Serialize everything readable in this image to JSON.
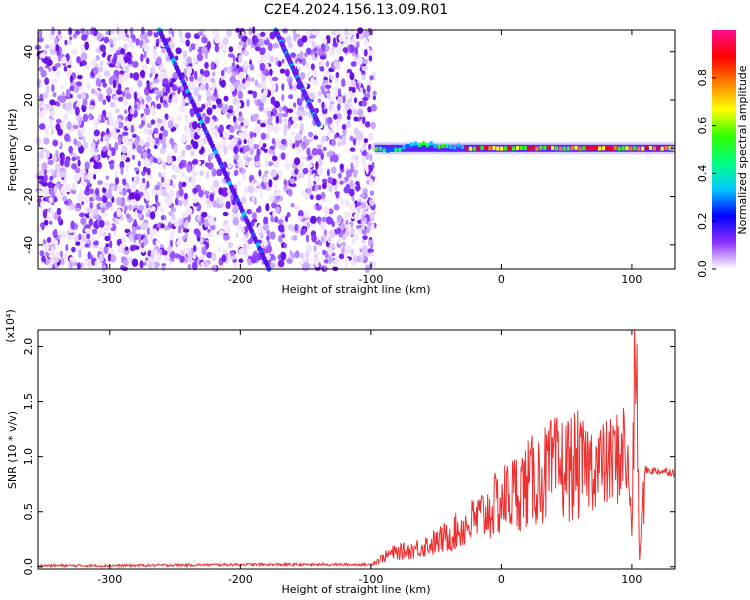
{
  "title": "C2E4.2024.156.13.09.R01",
  "chart_data": [
    {
      "type": "heatmap",
      "xlabel": "Height of straight line (km)",
      "ylabel": "Frequency (Hz)",
      "xlim": [
        -355,
        133
      ],
      "ylim": [
        -50,
        49
      ],
      "xticks": [
        -300,
        -200,
        -100,
        0,
        100
      ],
      "yticks": [
        -40,
        -20,
        0,
        20,
        40
      ],
      "colorbar": {
        "label": "Normalized spectral amplitude",
        "range": [
          0,
          1
        ],
        "ticks": [
          "0.0",
          "0.2",
          "0.4",
          "0.6",
          "0.8"
        ],
        "colors": [
          "#ffffff",
          "#8f30ff",
          "#0000ff",
          "#00c8ff",
          "#00ff80",
          "#30ff00",
          "#ffff00",
          "#ff8000",
          "#ff0000",
          "#ff1090"
        ]
      },
      "features": {
        "noise_region_x": [
          -355,
          -97
        ],
        "tone_freq_hz": 0,
        "tone_x": [
          -97,
          133
        ],
        "diagonal_line_1": {
          "x": [
            -262,
            -178
          ],
          "y": [
            49,
            -50
          ]
        },
        "diagonal_line_2": {
          "x": [
            -173,
            -140
          ],
          "y": [
            49,
            10
          ]
        }
      }
    },
    {
      "type": "line",
      "xlabel": "Height of straight line (km)",
      "ylabel": "SNR (10 * v/v)",
      "yscale_label": "(x10⁴)",
      "xlim": [
        -355,
        133
      ],
      "ylim": [
        -0.02,
        2.15
      ],
      "xticks": [
        -300,
        -200,
        -100,
        0,
        100
      ],
      "yticks": [
        "0.0",
        "0.5",
        "1.0",
        "1.5",
        "2.0"
      ],
      "series": [
        {
          "color": "#ee3030",
          "x": [
            -355,
            -300,
            -200,
            -100,
            -85,
            -70,
            -50,
            -30,
            -10,
            0,
            20,
            40,
            60,
            80,
            90,
            95,
            100,
            103,
            106,
            110,
            120,
            133
          ],
          "y": [
            0.01,
            0.01,
            0.02,
            0.02,
            0.12,
            0.15,
            0.22,
            0.35,
            0.5,
            0.6,
            0.75,
            0.88,
            0.92,
            0.92,
            1.0,
            1.1,
            0.4,
            2.12,
            0.05,
            0.88,
            0.87,
            0.86
          ]
        }
      ]
    }
  ]
}
